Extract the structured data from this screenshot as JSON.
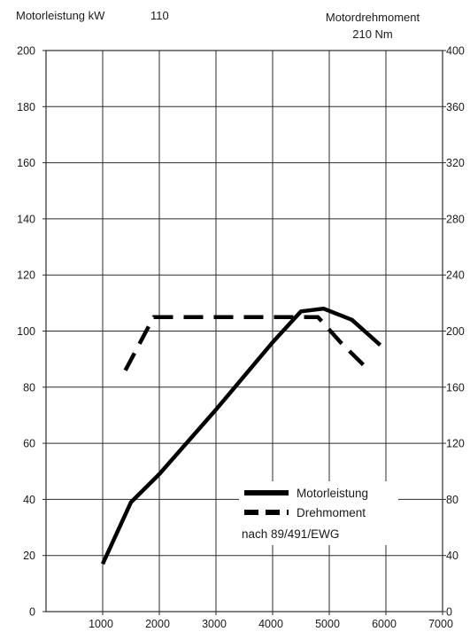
{
  "header": {
    "left_label": "Motorleistung kW",
    "left_value": "110",
    "right_label": "Motordrehmoment",
    "right_value": "210 Nm"
  },
  "legend": {
    "items": [
      "Motorleistung",
      "Drehmoment"
    ],
    "note": "nach 89/491/EWG"
  },
  "colors": {
    "line": "#000000",
    "grid": "#2b2b2b",
    "background": "#ffffff"
  },
  "chart_data": {
    "type": "line",
    "title": "",
    "xlabel": "",
    "ylabel": "Motorleistung kW",
    "y2label": "Motordrehmoment",
    "xlim": [
      0,
      7000
    ],
    "ylim": [
      0,
      200
    ],
    "y2lim": [
      0,
      400
    ],
    "x_ticks": [
      "1000",
      "2000",
      "3000",
      "4000",
      "5000",
      "6000",
      "7000"
    ],
    "y_ticks": [
      "0",
      "20",
      "40",
      "60",
      "80",
      "100",
      "120",
      "140",
      "160",
      "180",
      "200"
    ],
    "y2_ticks": [
      "0",
      "40",
      "80",
      "120",
      "160",
      "200",
      "240",
      "280",
      "320",
      "360",
      "400"
    ],
    "grid": true,
    "legend_position": "bottom-right",
    "series": [
      {
        "name": "Motorleistung",
        "style": "solid",
        "axis": "left",
        "x": [
          1000,
          1500,
          2000,
          3000,
          4000,
          4500,
          4900,
          5400,
          5900
        ],
        "y": [
          17,
          39,
          49,
          72,
          96,
          107,
          108,
          104,
          95
        ]
      },
      {
        "name": "Drehmoment",
        "style": "dashed",
        "axis": "right",
        "x": [
          1400,
          1900,
          2500,
          3000,
          4000,
          4500,
          4800,
          5200,
          5600
        ],
        "y": [
          172,
          210,
          210,
          210,
          210,
          210,
          210,
          192,
          176
        ]
      }
    ]
  }
}
